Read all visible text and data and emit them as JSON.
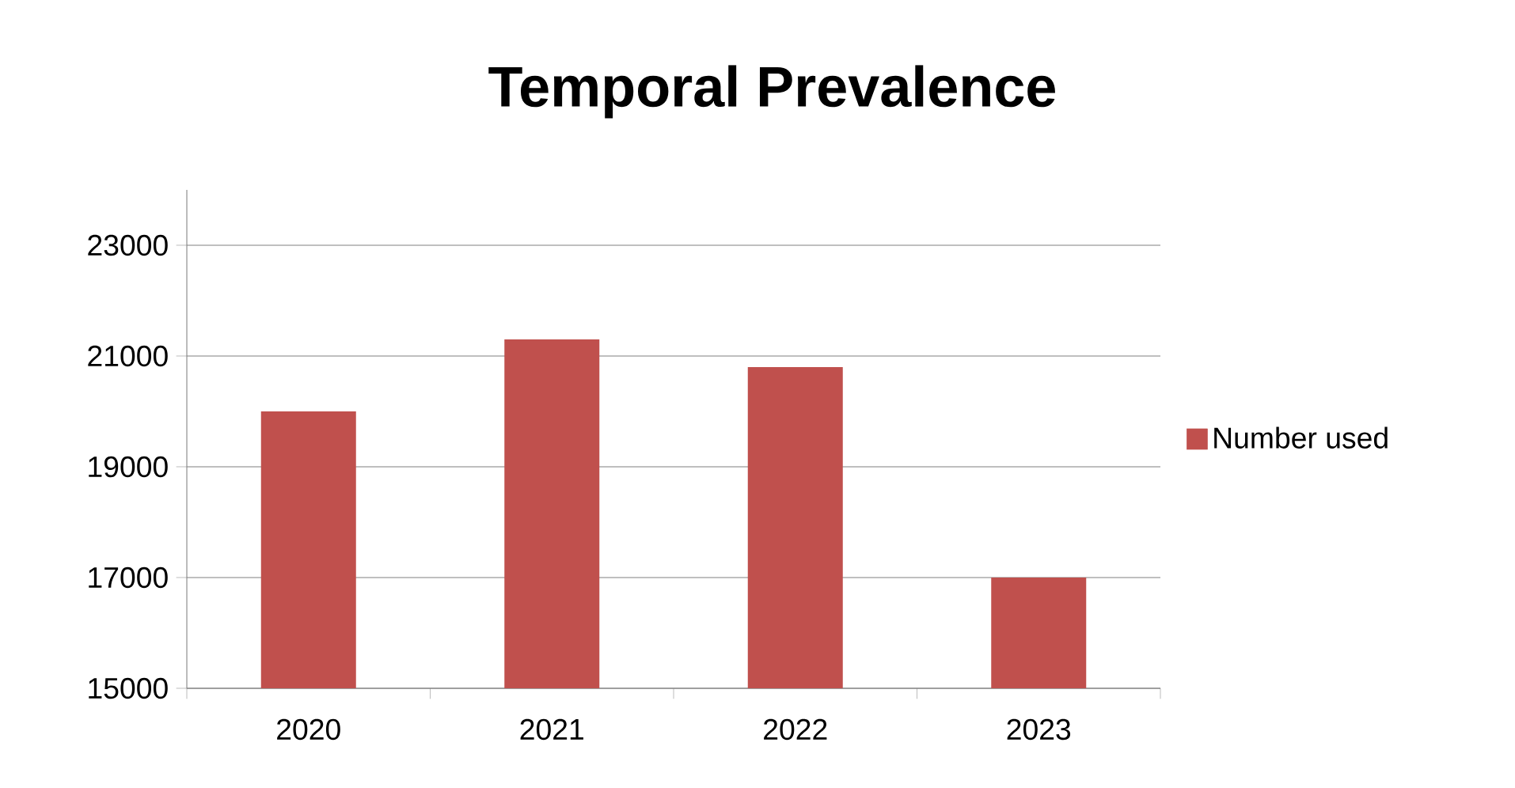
{
  "chart_data": {
    "type": "bar",
    "title": "Temporal Prevalence",
    "categories": [
      "2020",
      "2021",
      "2022",
      "2023"
    ],
    "series": [
      {
        "name": "Number used",
        "color": "#c0504d",
        "values": [
          20000,
          21300,
          20800,
          17000
        ]
      }
    ],
    "ylim": [
      15000,
      24000
    ],
    "yticks": [
      15000,
      17000,
      19000,
      21000,
      23000
    ],
    "grid": "y",
    "legend": "right"
  }
}
